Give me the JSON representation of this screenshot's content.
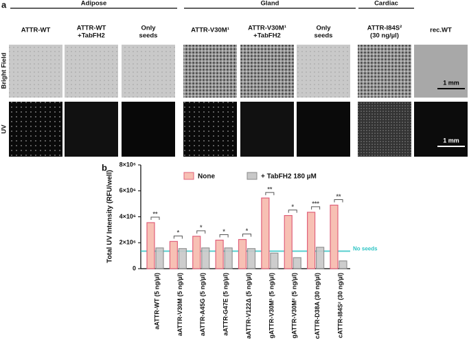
{
  "panel_a": {
    "label": "a",
    "groups": [
      "Adipose",
      "Gland",
      "Cardiac"
    ],
    "columns": [
      [
        "ATTR-WT"
      ],
      [
        "ATTR-WT",
        "+TabFH2"
      ],
      [
        "Only",
        "seeds"
      ],
      [
        "ATTR-V30M¹"
      ],
      [
        "ATTR-V30M¹",
        "+TabFH2"
      ],
      [
        "Only",
        "seeds"
      ],
      [
        "ATTR-I84S²",
        "(30 ng/µl)"
      ],
      [
        "rec.WT"
      ]
    ],
    "rows": [
      "Bright Field",
      "UV"
    ],
    "scale_bars": [
      "1 mm",
      "1 mm"
    ]
  },
  "chart_data": {
    "type": "bar",
    "panel_label": "b",
    "ylabel": "Total UV Intensity (RFU/well)",
    "categories": [
      "aATTR-WT (5 ng/µl)",
      "aATTR-V30M (5 ng/µl)",
      "aATTR-A45G (5 ng/µl)",
      "aATTR-G47E (5 ng/µl)",
      "aATTR-V122Δ (5 ng/µl)",
      "gATTR-V30M¹ (5 ng/µl)",
      "gATTR-V30M² (5 ng/µl)",
      "cATTR-D38A (30 ng/µl)",
      "cATTR-I84S² (30 ng/µl)"
    ],
    "series": [
      {
        "name": "None",
        "color": "#f7c0b4",
        "edge": "#e0607a",
        "values": [
          3550000,
          2100000,
          2500000,
          2200000,
          2250000,
          5450000,
          4100000,
          4350000,
          4900000
        ]
      },
      {
        "name": "+ TabFH2 180 µM",
        "color": "#c8c8c8",
        "edge": "#888888",
        "values": [
          1600000,
          1550000,
          1600000,
          1600000,
          1550000,
          1200000,
          850000,
          1650000,
          600000
        ]
      }
    ],
    "significance": [
      "**",
      "*",
      "*",
      "*",
      "*",
      "**",
      "*",
      "***",
      "**"
    ],
    "reference": {
      "value": 1350000,
      "label": "No seeds",
      "color": "#2ec4c4"
    },
    "ylim": [
      0,
      8000000
    ],
    "yticks": [
      0,
      {
        "value": 2000000,
        "label": "2×10⁶"
      },
      {
        "value": 4000000,
        "label": "4×10⁶"
      },
      {
        "value": 6000000,
        "label": "6×10⁶"
      },
      {
        "value": 8000000,
        "label": "8×10⁶"
      }
    ]
  }
}
